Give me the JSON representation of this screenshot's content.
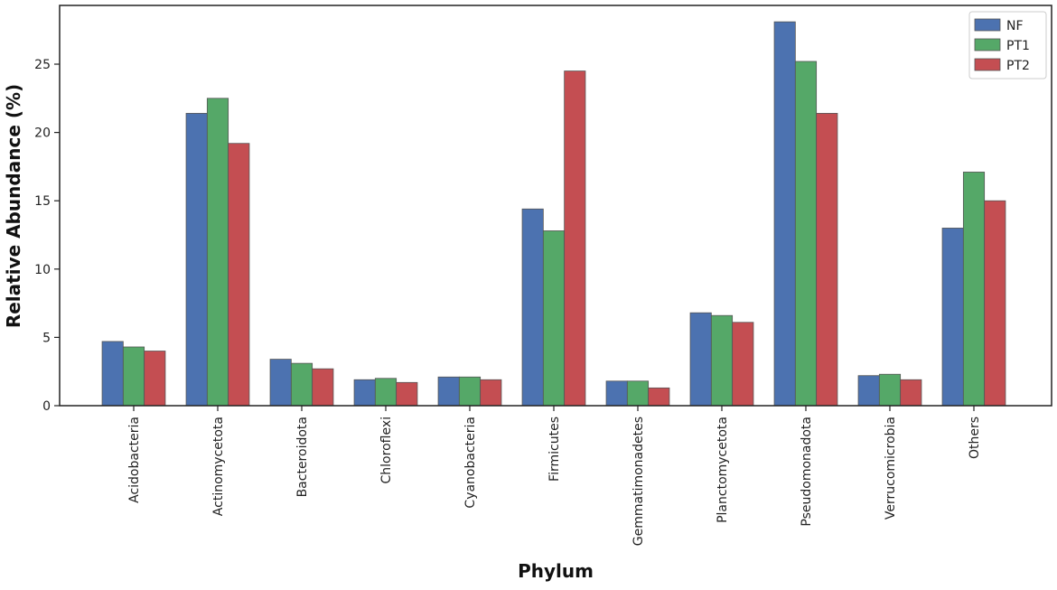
{
  "chart_data": {
    "type": "bar",
    "title": "",
    "xlabel": "Phylum",
    "ylabel": "Relative Abundance (%)",
    "ylim": [
      0,
      29.3
    ],
    "yticks": [
      0,
      5,
      10,
      15,
      20,
      25
    ],
    "grid": false,
    "legend_position": "top-right",
    "categories": [
      "Acidobacteria",
      "Actinomycetota",
      "Bacteroidota",
      "Chloroflexi",
      "Cyanobacteria",
      "Firmicutes",
      "Gemmatimonadetes",
      "Planctomycetota",
      "Pseudomonadota",
      "Verrucomicrobia",
      "Others"
    ],
    "series": [
      {
        "name": "NF",
        "color": "#4c72b0",
        "values": [
          4.7,
          21.4,
          3.4,
          1.9,
          2.1,
          14.4,
          1.8,
          6.8,
          28.1,
          2.2,
          13.0
        ]
      },
      {
        "name": "PT1",
        "color": "#55a868",
        "values": [
          4.3,
          22.5,
          3.1,
          2.0,
          2.1,
          12.8,
          1.8,
          6.6,
          25.2,
          2.3,
          17.1
        ]
      },
      {
        "name": "PT2",
        "color": "#c44e52",
        "values": [
          4.0,
          19.2,
          2.7,
          1.7,
          1.9,
          24.5,
          1.3,
          6.1,
          21.4,
          1.9,
          15.0
        ]
      }
    ]
  }
}
